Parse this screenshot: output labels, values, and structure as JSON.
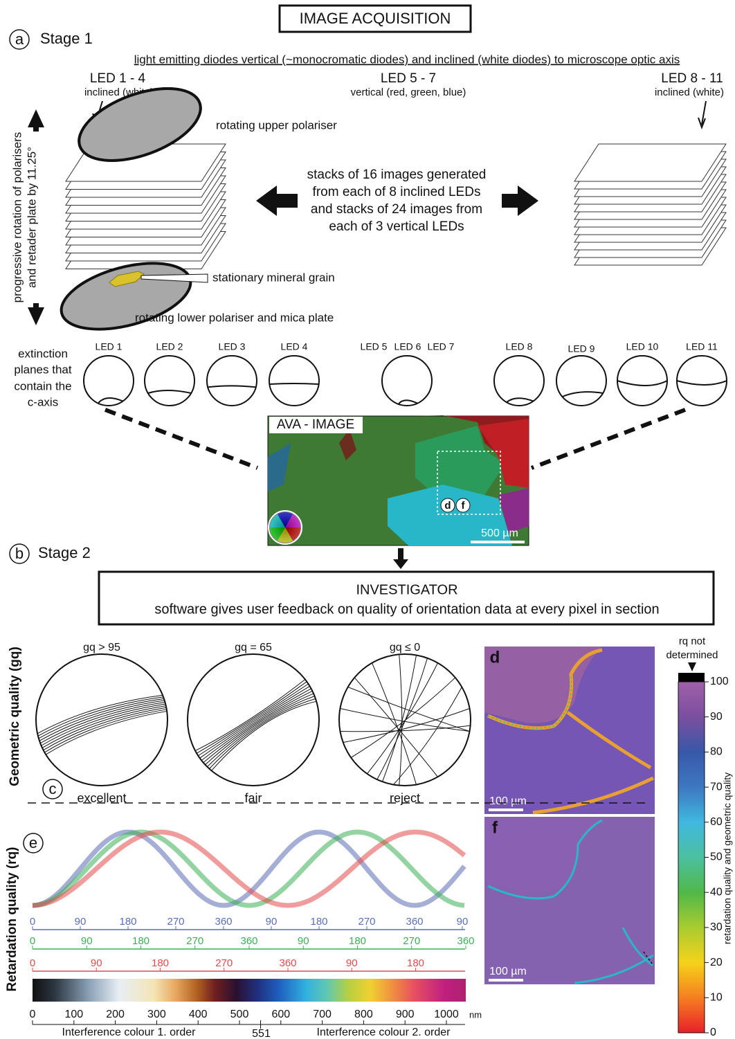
{
  "header": {
    "title": "IMAGE ACQUISITION"
  },
  "stage1": {
    "label": "a",
    "title": "Stage 1",
    "caption": "light emitting diodes vertical (~monocromatic diodes) and inclined (white diodes) to microscope optic axis",
    "leds": [
      {
        "name": "LED 1 - 4",
        "desc": "inclined (white)"
      },
      {
        "name": "LED 5 - 7",
        "desc": "vertical (red, green, blue)"
      },
      {
        "name": "LED 8 - 11",
        "desc": "inclined (white)"
      }
    ],
    "upper_polariser": "rotating upper polariser",
    "rotation_note": [
      "progressive rotation of polarisers",
      "and retader plate by 11.25°"
    ],
    "stacks_note": [
      "stacks of 16 images generated",
      "from each of 8 inclined LEDs",
      "and stacks of 24 images from",
      "each of 3 vertical LEDs"
    ],
    "mineral_grain": "stationary mineral grain",
    "lower_polariser": "rotating lower polariser and mica plate",
    "extinction_note": [
      "extinction",
      "planes that",
      "contain the",
      "c-axis"
    ],
    "extinction_leds": [
      "LED 1",
      "LED 2",
      "LED 3",
      "LED 4",
      "LED 5",
      "LED 6",
      "LED 7",
      "LED 8",
      "LED 9",
      "LED 10",
      "LED 11"
    ],
    "ava": {
      "title": "AVA - IMAGE",
      "markers": [
        "d",
        "f"
      ],
      "scale": "500 µm"
    }
  },
  "stage2": {
    "label": "b",
    "title": "Stage 2",
    "investigator": {
      "title": "INVESTIGATOR",
      "text": "software gives user feedback on quality of orientation data at every pixel in section"
    }
  },
  "geometric": {
    "label": "c",
    "axis_title": "Geometric quality (gq)",
    "nets": [
      {
        "threshold": "gq > 95",
        "rating": "excellent"
      },
      {
        "threshold": "gq = 65",
        "rating": "fair"
      },
      {
        "threshold": "gq ≤ 0",
        "rating": "reject"
      }
    ]
  },
  "maps": [
    {
      "label": "d",
      "scale": "100 µm"
    },
    {
      "label": "f",
      "scale": "100 µm"
    }
  ],
  "colorbar": {
    "header": [
      "rq not",
      "determined"
    ],
    "ticks": [
      0,
      10,
      20,
      30,
      40,
      50,
      60,
      70,
      80,
      90,
      100
    ],
    "axis_title": "retardation quality and geometric quality"
  },
  "retardation": {
    "label": "e",
    "axis_title": "Retardation quality (rq)",
    "blue_ticks": [
      0,
      90,
      180,
      270,
      360,
      90,
      180,
      270,
      360,
      90
    ],
    "green_ticks": [
      0,
      90,
      180,
      270,
      360,
      90,
      180,
      270,
      360
    ],
    "red_ticks": [
      0,
      90,
      180,
      270,
      360,
      90,
      180
    ],
    "nm_ticks": [
      0,
      100,
      200,
      300,
      400,
      500,
      600,
      700,
      800,
      900,
      1000
    ],
    "nm_unit": "nm",
    "order1": "Interference colour 1. order",
    "boundary": 551,
    "order2": "Interference colour 2. order"
  }
}
